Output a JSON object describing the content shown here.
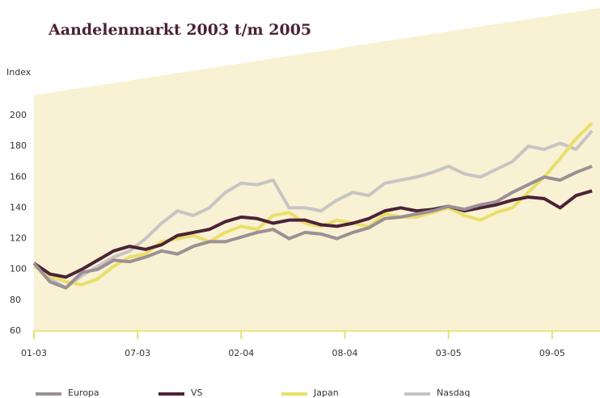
{
  "chart_data": {
    "type": "line",
    "title": "Aandelenmarkt 2003 t/m 2005",
    "y_label": "Index",
    "x": [
      0,
      4,
      8,
      12,
      16,
      20,
      24,
      28,
      32,
      36,
      40,
      44,
      48,
      52,
      56,
      60,
      64,
      68,
      72,
      76,
      80,
      84,
      88,
      92,
      96,
      100,
      104,
      108,
      112,
      116,
      120,
      124,
      128,
      132,
      136,
      140
    ],
    "xlim": [
      0,
      142
    ],
    "xticks": [
      {
        "value": 0,
        "label": "01-03"
      },
      {
        "value": 26,
        "label": "07-03"
      },
      {
        "value": 52,
        "label": "02-04"
      },
      {
        "value": 78,
        "label": "08-04"
      },
      {
        "value": 104,
        "label": "03-05"
      },
      {
        "value": 130,
        "label": "09-05"
      }
    ],
    "ylim": [
      60,
      200
    ],
    "yticks": [
      60,
      80,
      100,
      120,
      140,
      160,
      180,
      200
    ],
    "series": [
      {
        "name": "Europa",
        "color": "#9a9095",
        "values": [
          104,
          92,
          88,
          98,
          100,
          106,
          105,
          108,
          112,
          110,
          115,
          118,
          118,
          121,
          124,
          126,
          120,
          124,
          123,
          120,
          124,
          127,
          133,
          134,
          136,
          138,
          141,
          139,
          142,
          144,
          150,
          155,
          160,
          158,
          163,
          167
        ]
      },
      {
        "name": "VS",
        "color": "#4b2236",
        "values": [
          104,
          97,
          95,
          100,
          106,
          112,
          115,
          113,
          116,
          122,
          124,
          126,
          131,
          134,
          133,
          130,
          132,
          132,
          129,
          128,
          130,
          133,
          138,
          140,
          138,
          139,
          141,
          138,
          140,
          142,
          145,
          147,
          146,
          140,
          148,
          151
        ]
      },
      {
        "name": "Japan",
        "color": "#e8df6a",
        "values": [
          102,
          96,
          92,
          90,
          94,
          102,
          108,
          110,
          118,
          120,
          122,
          118,
          124,
          128,
          126,
          135,
          137,
          130,
          128,
          132,
          130,
          128,
          136,
          134,
          134,
          137,
          140,
          135,
          132,
          137,
          140,
          150,
          160,
          172,
          185,
          195
        ]
      },
      {
        "name": "Nasdaq",
        "color": "#c8c4c4",
        "values": [
          104,
          94,
          88,
          96,
          102,
          108,
          112,
          120,
          130,
          138,
          135,
          140,
          150,
          156,
          155,
          158,
          140,
          140,
          138,
          145,
          150,
          148,
          156,
          158,
          160,
          163,
          167,
          162,
          160,
          165,
          170,
          180,
          178,
          182,
          178,
          190
        ]
      }
    ]
  }
}
